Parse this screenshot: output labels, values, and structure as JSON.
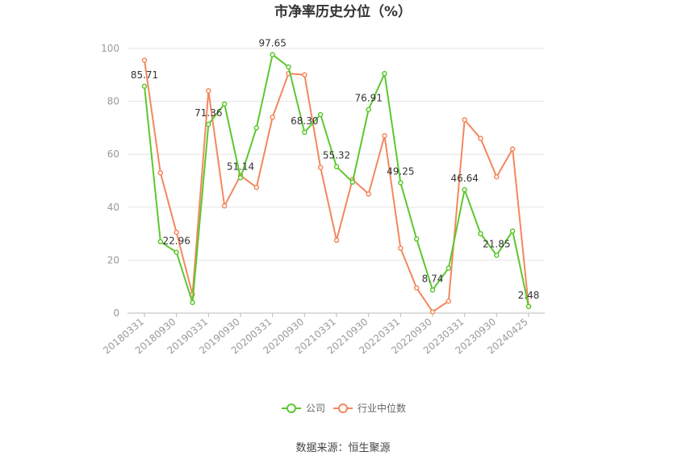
{
  "chart_data": {
    "type": "line",
    "title": "市净率历史分位（%）",
    "xlabel": "",
    "ylabel": "",
    "ylim": [
      0,
      100
    ],
    "yticks": [
      0,
      20,
      40,
      60,
      80,
      100
    ],
    "grid": true,
    "legend_position": "bottom",
    "colors": {
      "company": "#5cc82f",
      "industry": "#f4875e"
    },
    "x": [
      "20180331",
      "20180630",
      "20180930",
      "20181231",
      "20190331",
      "20190630",
      "20190930",
      "20191231",
      "20200331",
      "20200630",
      "20200930",
      "20201231",
      "20210331",
      "20210630",
      "20210930",
      "20211231",
      "20220331",
      "20220630",
      "20220930",
      "20221231",
      "20230331",
      "20230630",
      "20230930",
      "20231231",
      "20240425"
    ],
    "xtick_labels": [
      "20180331",
      "20180930",
      "20190331",
      "20190930",
      "20200331",
      "20200930",
      "20210331",
      "20210930",
      "20220331",
      "20220930",
      "20230331",
      "20230930",
      "20240425"
    ],
    "series": [
      {
        "name": "公司",
        "values": [
          85.71,
          27,
          22.96,
          4,
          71.36,
          79,
          51.14,
          70,
          97.65,
          93,
          68.3,
          75,
          55.32,
          49.5,
          76.91,
          90.5,
          49.25,
          28,
          8.74,
          17,
          46.64,
          30,
          21.85,
          31,
          2.48
        ],
        "labels": [
          "85.71",
          "",
          "22.96",
          "",
          "71.36",
          "",
          "51.14",
          "",
          "97.65",
          "",
          "68.30",
          "",
          "55.32",
          "",
          "76.91",
          "",
          "49.25",
          "",
          "8.74",
          "",
          "46.64",
          "",
          "21.85",
          "",
          "2.48"
        ]
      },
      {
        "name": "行业中位数",
        "values": [
          95.5,
          53,
          30.5,
          7,
          84,
          40.5,
          52,
          47.5,
          74,
          90.5,
          90,
          55,
          27.5,
          50.5,
          45,
          67,
          24.5,
          9.5,
          0.5,
          4.5,
          73,
          66,
          51.5,
          62,
          2.5
        ]
      }
    ]
  },
  "source_text": "数据来源：恒生聚源"
}
